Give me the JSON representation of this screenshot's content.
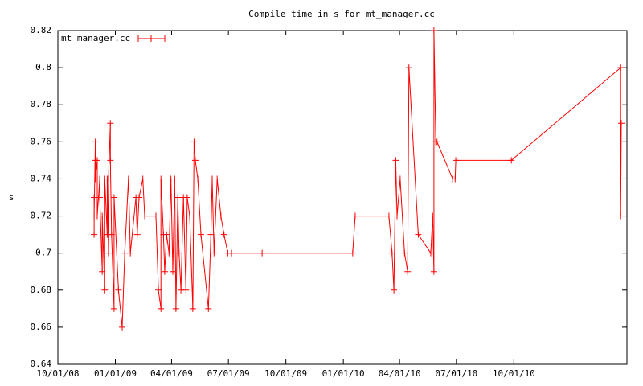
{
  "chart_data": {
    "type": "line",
    "title": "Compile time in s for mt_manager.cc",
    "ylabel": "s",
    "x": [
      "2008-11-28",
      "2008-11-28",
      "2008-11-28",
      "2008-11-30",
      "2008-11-30",
      "2008-11-30",
      "2008-12-03",
      "2008-12-03",
      "2008-12-03",
      "2008-12-07",
      "2008-12-07",
      "2008-12-11",
      "2008-12-11",
      "2008-12-15",
      "2008-12-15",
      "2008-12-19",
      "2008-12-19",
      "2008-12-21",
      "2008-12-21",
      "2008-12-24",
      "2008-12-24",
      "2008-12-26",
      "2008-12-30",
      "2008-12-30",
      "2009-01-06",
      "2009-01-12",
      "2009-01-16",
      "2009-01-22",
      "2009-01-25",
      "2009-02-03",
      "2009-02-05",
      "2009-02-08",
      "2009-02-14",
      "2009-02-17",
      "2009-03-07",
      "2009-03-11",
      "2009-03-15",
      "2009-03-15",
      "2009-03-19",
      "2009-03-21",
      "2009-03-24",
      "2009-03-28",
      "2009-03-31",
      "2009-04-03",
      "2009-04-06",
      "2009-04-08",
      "2009-04-11",
      "2009-04-13",
      "2009-04-16",
      "2009-04-20",
      "2009-04-24",
      "2009-04-26",
      "2009-04-30",
      "2009-05-05",
      "2009-05-07",
      "2009-05-09",
      "2009-05-13",
      "2009-05-18",
      "2009-05-30",
      "2009-06-03",
      "2009-06-05",
      "2009-06-08",
      "2009-06-13",
      "2009-06-19",
      "2009-06-24",
      "2009-06-30",
      "2009-07-06",
      "2009-08-24",
      "2010-01-16",
      "2010-01-20",
      "2010-03-15",
      "2010-03-20",
      "2010-03-23",
      "2010-03-26",
      "2010-03-28",
      "2010-04-02",
      "2010-04-09",
      "2010-04-14",
      "2010-04-16",
      "2010-05-01",
      "2010-05-21",
      "2010-05-24",
      "2010-05-26",
      "2010-05-26",
      "2010-05-29",
      "2010-05-31",
      "2010-06-25",
      "2010-06-29",
      "2010-06-30",
      "2010-09-27",
      "2011-03-21",
      "2011-03-21",
      "2011-03-22"
    ],
    "series": [
      {
        "name": "mt_manager.cc",
        "color": "#ff0000",
        "values": [
          0.71,
          0.73,
          0.72,
          0.76,
          0.75,
          0.74,
          0.75,
          0.74,
          0.72,
          0.74,
          0.73,
          0.69,
          0.72,
          0.68,
          0.74,
          0.71,
          0.74,
          0.7,
          0.74,
          0.77,
          0.75,
          0.71,
          0.67,
          0.73,
          0.68,
          0.66,
          0.7,
          0.74,
          0.7,
          0.73,
          0.71,
          0.73,
          0.74,
          0.72,
          0.72,
          0.68,
          0.67,
          0.74,
          0.71,
          0.69,
          0.71,
          0.7,
          0.74,
          0.69,
          0.74,
          0.67,
          0.73,
          0.7,
          0.68,
          0.73,
          0.68,
          0.73,
          0.72,
          0.67,
          0.76,
          0.75,
          0.74,
          0.71,
          0.67,
          0.71,
          0.74,
          0.7,
          0.74,
          0.72,
          0.71,
          0.7,
          0.7,
          0.7,
          0.7,
          0.72,
          0.72,
          0.7,
          0.68,
          0.75,
          0.72,
          0.74,
          0.7,
          0.69,
          0.8,
          0.71,
          0.7,
          0.72,
          0.69,
          0.82,
          0.76,
          0.76,
          0.74,
          0.74,
          0.75,
          0.75,
          0.8,
          0.72,
          0.77
        ]
      }
    ],
    "xlim": [
      "2008-10-01",
      "2011-03-31"
    ],
    "xticks": [
      {
        "value": "2008-10-01",
        "label": "10/01/08"
      },
      {
        "value": "2009-01-01",
        "label": "01/01/09"
      },
      {
        "value": "2009-04-01",
        "label": "04/01/09"
      },
      {
        "value": "2009-07-01",
        "label": "07/01/09"
      },
      {
        "value": "2009-10-01",
        "label": "10/01/09"
      },
      {
        "value": "2010-01-01",
        "label": "01/01/10"
      },
      {
        "value": "2010-04-01",
        "label": "04/01/10"
      },
      {
        "value": "2010-07-01",
        "label": "07/01/10"
      },
      {
        "value": "2010-10-01",
        "label": "10/01/10"
      }
    ],
    "ylim": [
      0.64,
      0.82
    ],
    "yticks": [
      0.64,
      0.66,
      0.68,
      0.7,
      0.72,
      0.74,
      0.76,
      0.78,
      0.8,
      0.82
    ],
    "legend": "top-left"
  }
}
